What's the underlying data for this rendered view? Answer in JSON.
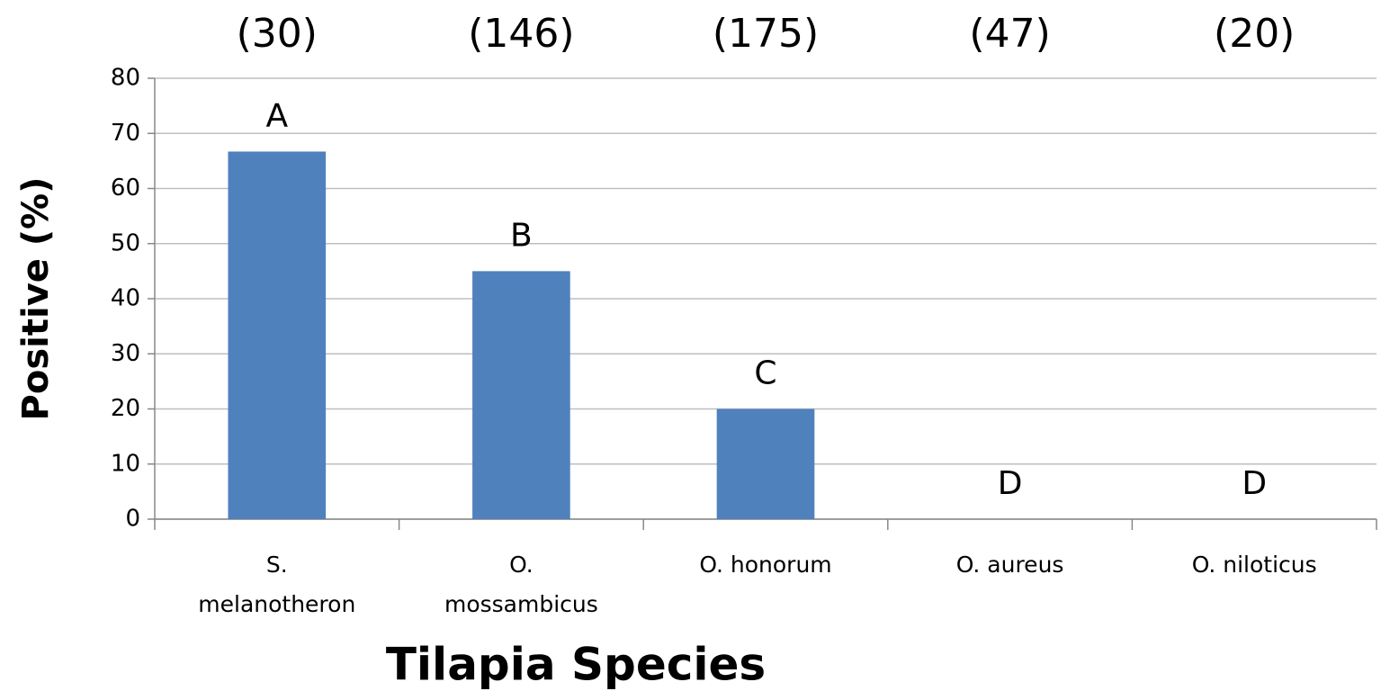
{
  "chart_data": {
    "type": "bar",
    "categories": [
      "S. melanotheron",
      "O. mossambicus",
      "O. honorum",
      "O. aureus",
      "O. niloticus"
    ],
    "values": [
      66.7,
      45,
      20,
      0,
      0
    ],
    "color": "#4f81bd",
    "group_labels": [
      "(30)",
      "(146)",
      "(175)",
      "(47)",
      "(20)"
    ],
    "annotations": [
      "A",
      "B",
      "C",
      "D",
      "D"
    ],
    "xlabel": "Tilapia Species",
    "ylabel": "Positive (%)",
    "ylim": [
      0,
      80
    ],
    "yticks": [
      0,
      10,
      20,
      30,
      40,
      50,
      60,
      70,
      80
    ],
    "grid": true
  }
}
